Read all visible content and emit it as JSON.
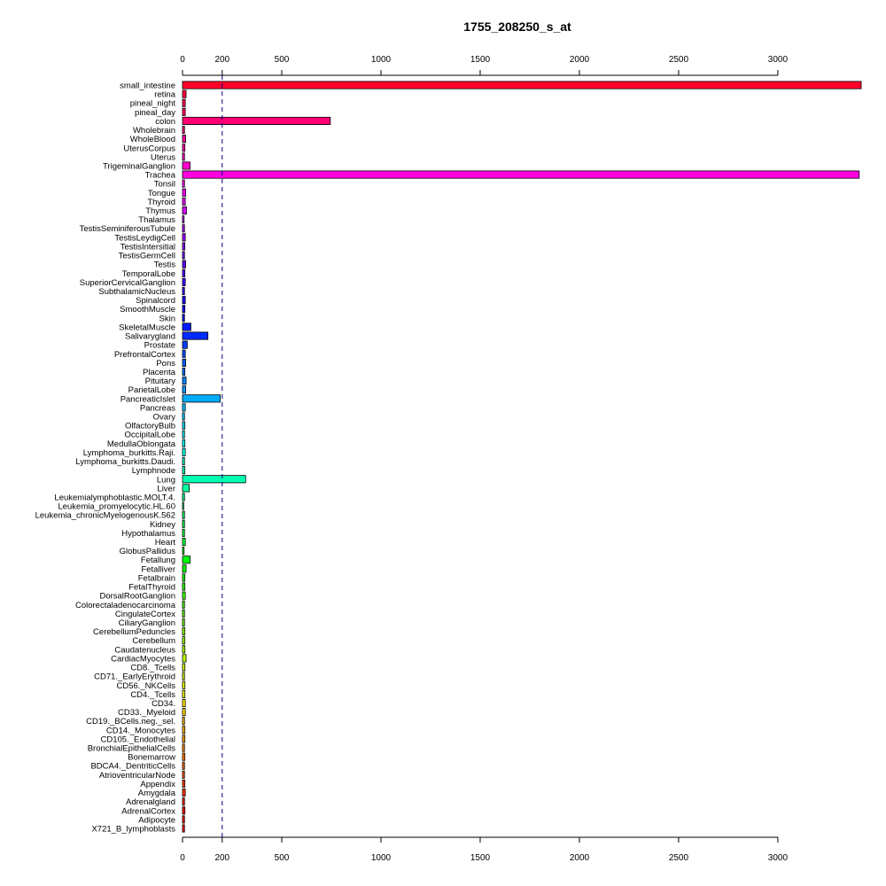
{
  "chart_data": {
    "type": "bar",
    "orientation": "horizontal",
    "title": "1755_208250_s_at",
    "xlabel": "",
    "ylabel": "",
    "xlim": [
      0,
      3420
    ],
    "x_ticks": [
      0,
      200,
      500,
      1000,
      1500,
      2000,
      2500,
      3000
    ],
    "reference_line": 200,
    "grid": false,
    "legend": "none",
    "categories": [
      "small_intestine",
      "retina",
      "pineal_night",
      "pineal_day",
      "colon",
      "Wholebrain",
      "WholeBlood",
      "UterusCorpus",
      "Uterus",
      "TrigeminalGanglion",
      "Trachea",
      "Tonsil",
      "Tongue",
      "Thyroid",
      "Thymus",
      "Thalamus",
      "TestisSeminiferousTubule",
      "TestisLeydigCell",
      "TestisIntersitial",
      "TestisGermCell",
      "Testis",
      "TemporalLobe",
      "SuperiorCervicalGanglion",
      "SubthalamicNucleus",
      "Spinalcord",
      "SmoothMuscle",
      "Skin",
      "SkeletalMuscle",
      "Salivarygland",
      "Prostate",
      "PrefrontalCortex",
      "Pons",
      "Placenta",
      "Pituitary",
      "ParietalLobe",
      "PancreaticIslet",
      "Pancreas",
      "Ovary",
      "OlfactoryBulb",
      "OccipitalLobe",
      "MedullaOblongata",
      "Lymphoma_burkitts.Raji.",
      "Lymphoma_burkitts.Daudi.",
      "Lymphnode",
      "Lung",
      "Liver",
      "Leukemialymphoblastic.MOLT.4.",
      "Leukemia_promyelocytic.HL.60",
      "Leukemia_chronicMyelogenousK.562",
      "Kidney",
      "Hypothalamus",
      "Heart",
      "GlobusPallidus",
      "Fetallung",
      "Fetalliver",
      "Fetalbrain",
      "FetalThyroid",
      "DorsalRootGanglion",
      "Colorectaladenocarcinoma",
      "CingulateCortex",
      "CiliaryGanglion",
      "CerebellumPeduncles",
      "Cerebellum",
      "Caudatenucleus",
      "CardiacMyocytes",
      "CD8._Tcells",
      "CD71._EarlyErythroid",
      "CD56._NKCells",
      "CD4._Tcells",
      "CD34.",
      "CD33._Myeloid",
      "CD19._BCells.neg._sel.",
      "CD14._Monocytes",
      "CD105._Endothelial",
      "BronchialEpithelialCells",
      "Bonemarrow",
      "BDCA4._DentriticCells",
      "AtrioventricularNode",
      "Appendix",
      "Amygdala",
      "Adrenalgland",
      "AdrenalCortex",
      "Adipocyte",
      "X721_B_lymphoblasts"
    ],
    "values": [
      3420,
      18,
      14,
      14,
      745,
      10,
      16,
      12,
      10,
      38,
      3410,
      10,
      16,
      14,
      20,
      8,
      10,
      14,
      12,
      10,
      16,
      12,
      14,
      10,
      14,
      12,
      10,
      42,
      128,
      24,
      14,
      16,
      12,
      18,
      16,
      190,
      14,
      10,
      12,
      10,
      12,
      14,
      10,
      12,
      318,
      34,
      10,
      6,
      10,
      10,
      10,
      14,
      8,
      38,
      18,
      12,
      12,
      14,
      10,
      10,
      10,
      12,
      12,
      12,
      18,
      12,
      10,
      12,
      12,
      14,
      14,
      10,
      12,
      12,
      10,
      12,
      10,
      10,
      12,
      14,
      10,
      12,
      10,
      10
    ]
  }
}
